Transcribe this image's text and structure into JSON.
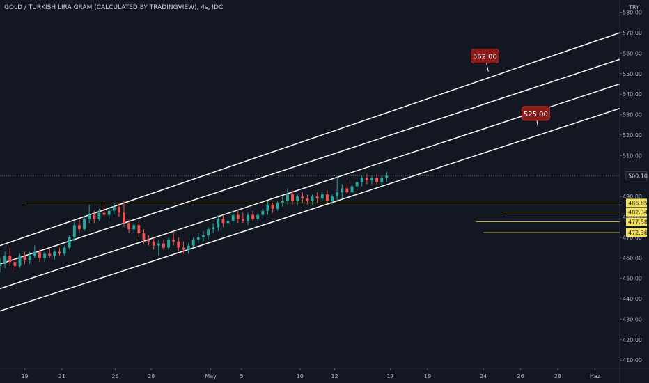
{
  "header": {
    "title": "GOLD / TURKISH LIRA GRAM (CALCULATED BY TRADINGVIEW), 4s, IDC",
    "currency": "TRY"
  },
  "colors": {
    "bg": "#131722",
    "up": "#26a69a",
    "down": "#ef5350",
    "line": "#ffffff",
    "level": "#f5e15b",
    "callout": "#8b1a1a",
    "axis": "#b2b5be"
  },
  "chart_data": {
    "type": "candlestick",
    "title": "GOLD / TURKISH LIRA GRAM (CALCULATED BY TRADINGVIEW), 4s, IDC",
    "currency": "TRY",
    "ylim": [
      406,
      586
    ],
    "x_range": [
      0,
      50
    ],
    "y_ticks": [
      580,
      570,
      560,
      550,
      540,
      530,
      520,
      510,
      490,
      480,
      470,
      460,
      450,
      440,
      430,
      420,
      410
    ],
    "y_tick_labels": [
      "580.00",
      "570.00",
      "560.00",
      "550.00",
      "540.00",
      "530.00",
      "520.00",
      "510.00",
      "490.00",
      "480.00",
      "470.00",
      "460.00",
      "450.00",
      "440.00",
      "430.00",
      "420.00",
      "410.00"
    ],
    "x_ticks": [
      {
        "x": 2,
        "label": "19"
      },
      {
        "x": 5,
        "label": "21"
      },
      {
        "x": 9.3,
        "label": "26"
      },
      {
        "x": 12.2,
        "label": "28"
      },
      {
        "x": 17,
        "label": "May"
      },
      {
        "x": 19.5,
        "label": "5"
      },
      {
        "x": 24.2,
        "label": "10"
      },
      {
        "x": 27,
        "label": "12"
      },
      {
        "x": 31.5,
        "label": "17"
      },
      {
        "x": 34.5,
        "label": "19"
      },
      {
        "x": 39,
        "label": "24"
      },
      {
        "x": 42,
        "label": "26"
      },
      {
        "x": 45,
        "label": "28"
      },
      {
        "x": 48,
        "label": "Haz"
      }
    ],
    "candles": [
      {
        "x": 0.0,
        "o": 456,
        "h": 460,
        "l": 453,
        "c": 457
      },
      {
        "x": 0.4,
        "o": 457,
        "h": 463,
        "l": 455,
        "c": 461
      },
      {
        "x": 0.8,
        "o": 461,
        "h": 465,
        "l": 456,
        "c": 458
      },
      {
        "x": 1.2,
        "o": 458,
        "h": 460,
        "l": 454,
        "c": 456
      },
      {
        "x": 1.6,
        "o": 456,
        "h": 462,
        "l": 455,
        "c": 461
      },
      {
        "x": 2.0,
        "o": 461,
        "h": 463,
        "l": 457,
        "c": 459
      },
      {
        "x": 2.4,
        "o": 459,
        "h": 463,
        "l": 457,
        "c": 461
      },
      {
        "x": 2.8,
        "o": 461,
        "h": 466,
        "l": 460,
        "c": 463
      },
      {
        "x": 3.2,
        "o": 463,
        "h": 464,
        "l": 458,
        "c": 460
      },
      {
        "x": 3.6,
        "o": 460,
        "h": 463,
        "l": 458,
        "c": 462
      },
      {
        "x": 4.0,
        "o": 462,
        "h": 465,
        "l": 460,
        "c": 461
      },
      {
        "x": 4.4,
        "o": 461,
        "h": 464,
        "l": 459,
        "c": 463
      },
      {
        "x": 4.8,
        "o": 463,
        "h": 465,
        "l": 461,
        "c": 462
      },
      {
        "x": 5.2,
        "o": 462,
        "h": 466,
        "l": 461,
        "c": 465
      },
      {
        "x": 5.6,
        "o": 465,
        "h": 471,
        "l": 464,
        "c": 470
      },
      {
        "x": 6.0,
        "o": 470,
        "h": 478,
        "l": 468,
        "c": 476
      },
      {
        "x": 6.4,
        "o": 476,
        "h": 479,
        "l": 472,
        "c": 474
      },
      {
        "x": 6.8,
        "o": 474,
        "h": 481,
        "l": 473,
        "c": 479
      },
      {
        "x": 7.2,
        "o": 479,
        "h": 486,
        "l": 477,
        "c": 481
      },
      {
        "x": 7.6,
        "o": 481,
        "h": 483,
        "l": 477,
        "c": 479
      },
      {
        "x": 8.0,
        "o": 479,
        "h": 484,
        "l": 478,
        "c": 482
      },
      {
        "x": 8.4,
        "o": 482,
        "h": 486,
        "l": 480,
        "c": 481
      },
      {
        "x": 8.8,
        "o": 481,
        "h": 485,
        "l": 479,
        "c": 483
      },
      {
        "x": 9.2,
        "o": 483,
        "h": 487,
        "l": 481,
        "c": 485
      },
      {
        "x": 9.6,
        "o": 485,
        "h": 487,
        "l": 480,
        "c": 482
      },
      {
        "x": 10.0,
        "o": 482,
        "h": 488,
        "l": 475,
        "c": 477
      },
      {
        "x": 10.4,
        "o": 477,
        "h": 479,
        "l": 472,
        "c": 474
      },
      {
        "x": 10.8,
        "o": 474,
        "h": 477,
        "l": 472,
        "c": 476
      },
      {
        "x": 11.2,
        "o": 476,
        "h": 478,
        "l": 470,
        "c": 472
      },
      {
        "x": 11.6,
        "o": 472,
        "h": 474,
        "l": 467,
        "c": 469
      },
      {
        "x": 12.0,
        "o": 469,
        "h": 471,
        "l": 466,
        "c": 468
      },
      {
        "x": 12.4,
        "o": 468,
        "h": 470,
        "l": 464,
        "c": 466
      },
      {
        "x": 12.8,
        "o": 466,
        "h": 469,
        "l": 461,
        "c": 467
      },
      {
        "x": 13.2,
        "o": 467,
        "h": 469,
        "l": 464,
        "c": 465
      },
      {
        "x": 13.6,
        "o": 465,
        "h": 470,
        "l": 464,
        "c": 469
      },
      {
        "x": 14.0,
        "o": 469,
        "h": 473,
        "l": 466,
        "c": 468
      },
      {
        "x": 14.4,
        "o": 468,
        "h": 470,
        "l": 463,
        "c": 465
      },
      {
        "x": 14.8,
        "o": 465,
        "h": 468,
        "l": 462,
        "c": 464
      },
      {
        "x": 15.2,
        "o": 464,
        "h": 467,
        "l": 462,
        "c": 466
      },
      {
        "x": 15.6,
        "o": 466,
        "h": 470,
        "l": 465,
        "c": 469
      },
      {
        "x": 16.0,
        "o": 469,
        "h": 472,
        "l": 467,
        "c": 470
      },
      {
        "x": 16.4,
        "o": 470,
        "h": 473,
        "l": 468,
        "c": 471
      },
      {
        "x": 16.8,
        "o": 471,
        "h": 475,
        "l": 469,
        "c": 474
      },
      {
        "x": 17.2,
        "o": 474,
        "h": 477,
        "l": 472,
        "c": 475
      },
      {
        "x": 17.6,
        "o": 475,
        "h": 481,
        "l": 473,
        "c": 479
      },
      {
        "x": 18.0,
        "o": 479,
        "h": 481,
        "l": 475,
        "c": 477
      },
      {
        "x": 18.4,
        "o": 477,
        "h": 480,
        "l": 475,
        "c": 478
      },
      {
        "x": 18.8,
        "o": 478,
        "h": 483,
        "l": 476,
        "c": 481
      },
      {
        "x": 19.2,
        "o": 481,
        "h": 484,
        "l": 477,
        "c": 479
      },
      {
        "x": 19.6,
        "o": 479,
        "h": 482,
        "l": 477,
        "c": 478
      },
      {
        "x": 20.0,
        "o": 478,
        "h": 482,
        "l": 476,
        "c": 481
      },
      {
        "x": 20.4,
        "o": 481,
        "h": 483,
        "l": 478,
        "c": 479
      },
      {
        "x": 20.8,
        "o": 479,
        "h": 482,
        "l": 478,
        "c": 481
      },
      {
        "x": 21.2,
        "o": 481,
        "h": 484,
        "l": 479,
        "c": 483
      },
      {
        "x": 21.6,
        "o": 483,
        "h": 488,
        "l": 481,
        "c": 486
      },
      {
        "x": 22.0,
        "o": 486,
        "h": 487,
        "l": 482,
        "c": 484
      },
      {
        "x": 22.4,
        "o": 484,
        "h": 488,
        "l": 483,
        "c": 487
      },
      {
        "x": 22.8,
        "o": 487,
        "h": 490,
        "l": 485,
        "c": 488
      },
      {
        "x": 23.2,
        "o": 488,
        "h": 494,
        "l": 486,
        "c": 491
      },
      {
        "x": 23.6,
        "o": 491,
        "h": 493,
        "l": 486,
        "c": 488
      },
      {
        "x": 24.0,
        "o": 488,
        "h": 491,
        "l": 486,
        "c": 490
      },
      {
        "x": 24.4,
        "o": 490,
        "h": 492,
        "l": 487,
        "c": 489
      },
      {
        "x": 24.8,
        "o": 489,
        "h": 491,
        "l": 486,
        "c": 488
      },
      {
        "x": 25.2,
        "o": 488,
        "h": 491,
        "l": 486,
        "c": 490
      },
      {
        "x": 25.6,
        "o": 490,
        "h": 492,
        "l": 487,
        "c": 489
      },
      {
        "x": 26.0,
        "o": 489,
        "h": 492,
        "l": 488,
        "c": 491
      },
      {
        "x": 26.4,
        "o": 491,
        "h": 493,
        "l": 487,
        "c": 488
      },
      {
        "x": 26.8,
        "o": 488,
        "h": 491,
        "l": 486,
        "c": 490
      },
      {
        "x": 27.2,
        "o": 490,
        "h": 500,
        "l": 488,
        "c": 492
      },
      {
        "x": 27.6,
        "o": 492,
        "h": 496,
        "l": 489,
        "c": 494
      },
      {
        "x": 28.0,
        "o": 494,
        "h": 497,
        "l": 491,
        "c": 492
      },
      {
        "x": 28.4,
        "o": 492,
        "h": 496,
        "l": 490,
        "c": 495
      },
      {
        "x": 28.8,
        "o": 495,
        "h": 499,
        "l": 493,
        "c": 497
      },
      {
        "x": 29.2,
        "o": 497,
        "h": 500,
        "l": 495,
        "c": 499
      },
      {
        "x": 29.6,
        "o": 499,
        "h": 501,
        "l": 496,
        "c": 498
      },
      {
        "x": 30.0,
        "o": 498,
        "h": 500,
        "l": 496,
        "c": 499
      },
      {
        "x": 30.4,
        "o": 499,
        "h": 501,
        "l": 496,
        "c": 497
      },
      {
        "x": 30.8,
        "o": 497,
        "h": 500,
        "l": 495,
        "c": 499
      },
      {
        "x": 31.2,
        "o": 499,
        "h": 502,
        "l": 497,
        "c": 500.1
      }
    ],
    "channel_lines": [
      {
        "x1": 0,
        "y1": 466,
        "x2": 50,
        "y2": 570
      },
      {
        "x1": 0,
        "y1": 457,
        "x2": 50,
        "y2": 557
      },
      {
        "x1": 0,
        "y1": 445,
        "x2": 50,
        "y2": 545
      },
      {
        "x1": 0,
        "y1": 434,
        "x2": 50,
        "y2": 533
      }
    ],
    "horizontal_levels": [
      {
        "value": 486.85,
        "label": "486.85",
        "x_start": 2
      },
      {
        "value": 482.34,
        "label": "482.34",
        "x_start": 40.6
      },
      {
        "value": 477.58,
        "label": "477.58",
        "x_start": 38.4
      },
      {
        "value": 472.36,
        "label": "472.36",
        "x_start": 39
      }
    ],
    "current_price": {
      "value": 500.1,
      "label": "500.10"
    },
    "annotations": [
      {
        "text": "562.00",
        "box_x": 38,
        "box_y": 562,
        "tip_x": 39.4,
        "tip_y": 551
      },
      {
        "text": "525.00",
        "box_x": 42.1,
        "box_y": 534,
        "tip_x": 43.4,
        "tip_y": 524
      }
    ]
  }
}
